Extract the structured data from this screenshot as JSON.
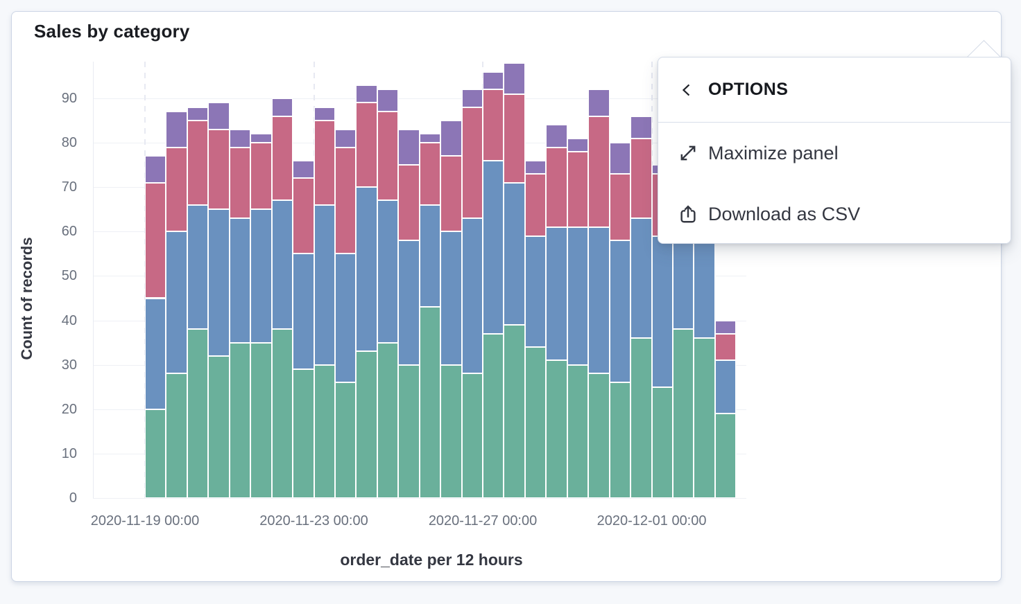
{
  "ui": {
    "page_bg": "#f6f8fb",
    "panel_bg": "#ffffff",
    "panel_border": "#ccd5e5",
    "grid_color": "#eef0f5",
    "dashed_grid_color": "#e7e9f2",
    "axis_text_color": "#69707d",
    "title_text_color": "#1a1c21",
    "menu_text_color": "#343741",
    "popover_border": "#d3dae6"
  },
  "panel": {
    "title": "Sales by category"
  },
  "popover": {
    "title": "OPTIONS",
    "back_icon": "chevron-left-icon",
    "items": [
      {
        "label": "Maximize panel",
        "icon": "maximize-icon"
      },
      {
        "label": "Download as CSV",
        "icon": "download-csv-icon"
      }
    ]
  },
  "chart_data": {
    "type": "bar",
    "stacked": true,
    "title": "Sales by category",
    "xlabel": "order_date per 12 hours",
    "ylabel": "Count of records",
    "bucket_interval": "12 hours",
    "num_buckets": 28,
    "ylim": [
      0,
      100
    ],
    "y_ticks": [
      0,
      10,
      20,
      30,
      40,
      50,
      60,
      70,
      80,
      90
    ],
    "x_ticks": [
      {
        "label": "2020-11-19 00:00",
        "bar_index": 0
      },
      {
        "label": "2020-11-23 00:00",
        "bar_index": 8
      },
      {
        "label": "2020-11-27 00:00",
        "bar_index": 16
      },
      {
        "label": "2020-12-01 00:00",
        "bar_index": 24
      }
    ],
    "grid": true,
    "legend_position": "none",
    "series": [
      {
        "name": "green",
        "color": "#6ab09b",
        "values": [
          20,
          28,
          38,
          32,
          35,
          35,
          38,
          29,
          30,
          26,
          33,
          35,
          30,
          43,
          30,
          28,
          37,
          39,
          34,
          31,
          30,
          28,
          26,
          36,
          25,
          38,
          36,
          19
        ]
      },
      {
        "name": "blue",
        "color": "#6a91bf",
        "values": [
          25,
          32,
          28,
          33,
          28,
          30,
          29,
          26,
          36,
          29,
          37,
          32,
          28,
          23,
          30,
          35,
          39,
          32,
          25,
          30,
          31,
          33,
          32,
          27,
          34,
          25,
          27,
          12
        ]
      },
      {
        "name": "pink",
        "color": "#c76985",
        "values": [
          26,
          19,
          19,
          18,
          16,
          15,
          19,
          17,
          19,
          24,
          19,
          20,
          17,
          14,
          17,
          25,
          16,
          20,
          14,
          18,
          17,
          25,
          15,
          18,
          14,
          11,
          10,
          6
        ]
      },
      {
        "name": "purple",
        "color": "#8c76b6",
        "values": [
          6,
          8,
          3,
          6,
          4,
          2,
          4,
          4,
          3,
          4,
          4,
          5,
          8,
          2,
          8,
          4,
          4,
          7,
          3,
          5,
          3,
          6,
          7,
          5,
          2,
          6,
          7,
          3
        ]
      }
    ],
    "totals": [
      77,
      87,
      88,
      89,
      83,
      82,
      90,
      76,
      88,
      83,
      93,
      92,
      83,
      82,
      85,
      92,
      96,
      98,
      76,
      84,
      81,
      92,
      80,
      86,
      75,
      80,
      80,
      40
    ],
    "bars_partially_hidden_by_popover": [
      25,
      26
    ],
    "note": "upper segments of the two bars behind the popover are estimated"
  }
}
